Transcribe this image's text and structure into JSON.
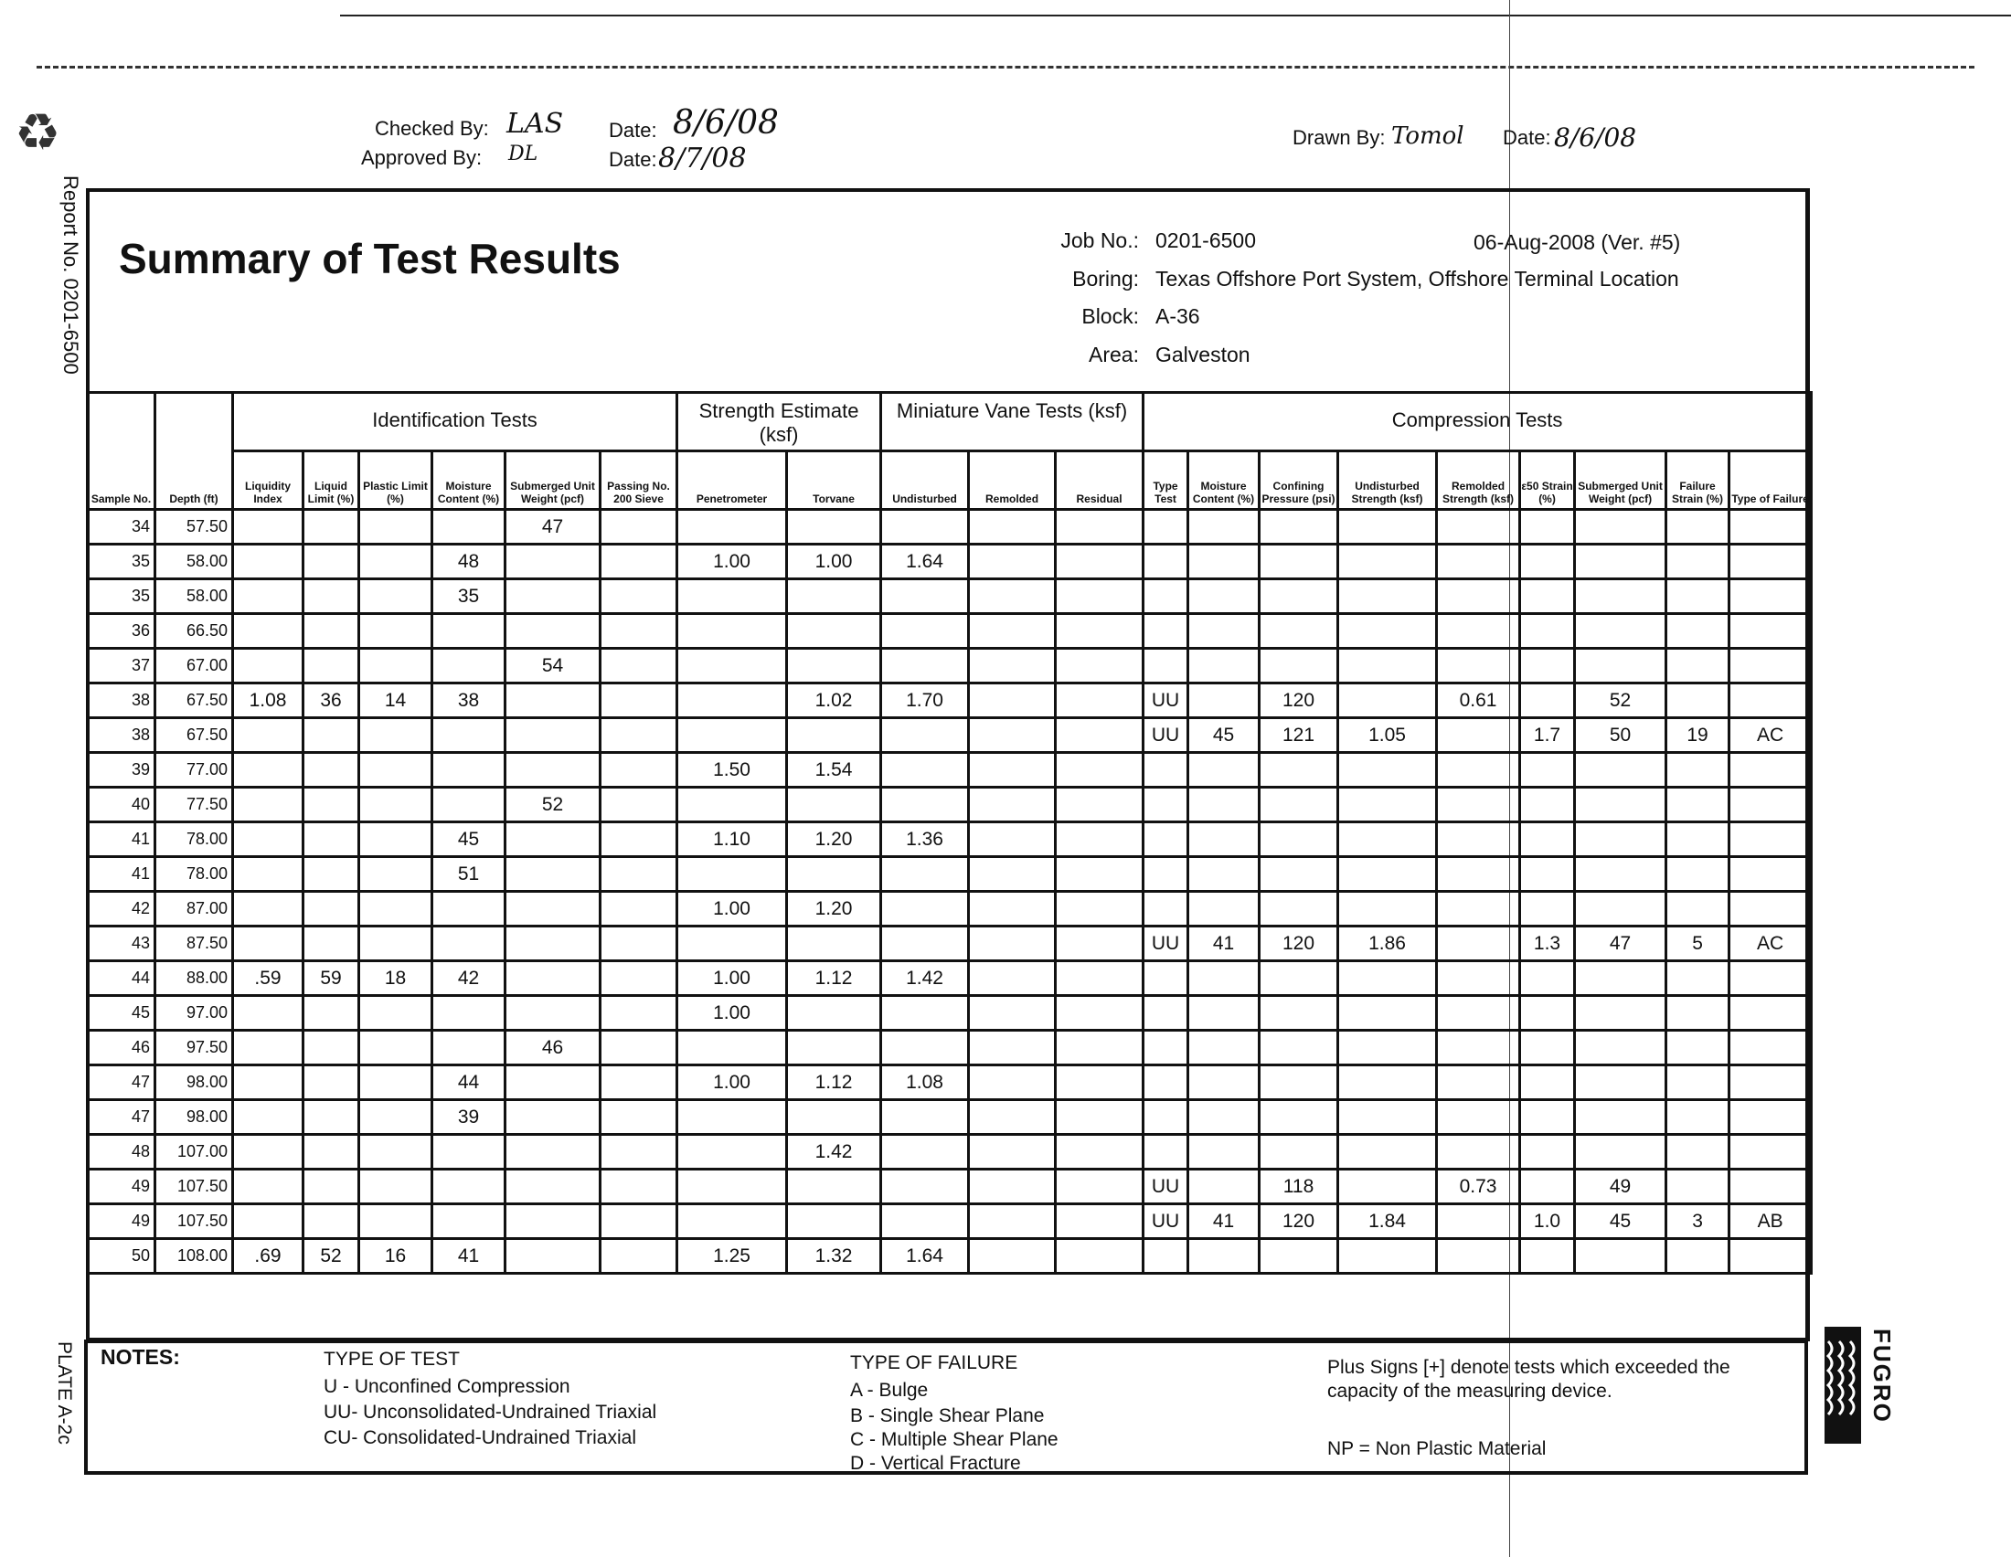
{
  "header": {
    "checked_by_label": "Checked By:",
    "checked_by_sig": "LAS",
    "checked_date_label": "Date:",
    "checked_date": "8/6/08",
    "approved_by_label": "Approved By:",
    "approved_by_sig": "DL",
    "approved_date_label": "Date:",
    "approved_date": "8/7/08",
    "drawn_by_label": "Drawn By:",
    "drawn_by_sig": "Tomol",
    "drawn_date_label": "Date:",
    "drawn_date": "8/6/08"
  },
  "side": {
    "report_no": "Report No. 0201-6500",
    "plate": "PLATE A-2c"
  },
  "title": "Summary of Test Results",
  "info": {
    "job_label": "Job No.:",
    "job": "0201-6500",
    "date_version": "06-Aug-2008  (Ver. #5)",
    "boring_label": "Boring:",
    "boring": "Texas Offshore Port System, Offshore Terminal Location",
    "block_label": "Block:",
    "block": "A-36",
    "area_label": "Area:",
    "area": "Galveston"
  },
  "table": {
    "groups": [
      "Identification Tests",
      "Strength Estimate (ksf)",
      "Miniature Vane Tests (ksf)",
      "Compression Tests"
    ],
    "columns": [
      "Sample No.",
      "Depth (ft)",
      "Liquidity Index",
      "Liquid Limit (%)",
      "Plastic Limit (%)",
      "Moisture Content (%)",
      "Submerged Unit Weight (pcf)",
      "Passing No. 200 Sieve",
      "Penetrometer",
      "Torvane",
      "Undisturbed",
      "Remolded",
      "Residual",
      "Type Test",
      "Moisture Content (%)",
      "Confining Pressure (psi)",
      "Undisturbed Strength (ksf)",
      "Remolded Strength (ksf)",
      "ε50 Strain (%)",
      "Submerged Unit Weight (pcf)",
      "Failure Strain (%)",
      "Type of Failure"
    ],
    "rows": [
      [
        "34",
        "57.50",
        "",
        "",
        "",
        "",
        "47",
        "",
        "",
        "",
        "",
        "",
        "",
        "",
        "",
        "",
        "",
        "",
        "",
        "",
        "",
        ""
      ],
      [
        "35",
        "58.00",
        "",
        "",
        "",
        "48",
        "",
        "",
        "1.00",
        "1.00",
        "1.64",
        "",
        "",
        "",
        "",
        "",
        "",
        "",
        "",
        "",
        "",
        ""
      ],
      [
        "35",
        "58.00",
        "",
        "",
        "",
        "35",
        "",
        "",
        "",
        "",
        "",
        "",
        "",
        "",
        "",
        "",
        "",
        "",
        "",
        "",
        "",
        ""
      ],
      [
        "36",
        "66.50",
        "",
        "",
        "",
        "",
        "",
        "",
        "",
        "",
        "",
        "",
        "",
        "",
        "",
        "",
        "",
        "",
        "",
        "",
        "",
        ""
      ],
      [
        "37",
        "67.00",
        "",
        "",
        "",
        "",
        "54",
        "",
        "",
        "",
        "",
        "",
        "",
        "",
        "",
        "",
        "",
        "",
        "",
        "",
        "",
        ""
      ],
      [
        "38",
        "67.50",
        "1.08",
        "36",
        "14",
        "38",
        "",
        "",
        "",
        "1.02",
        "1.70",
        "",
        "",
        "UU",
        "",
        "120",
        "",
        "0.61",
        "",
        "52",
        "",
        ""
      ],
      [
        "38",
        "67.50",
        "",
        "",
        "",
        "",
        "",
        "",
        "",
        "",
        "",
        "",
        "",
        "UU",
        "45",
        "121",
        "1.05",
        "",
        "1.7",
        "50",
        "19",
        "AC"
      ],
      [
        "39",
        "77.00",
        "",
        "",
        "",
        "",
        "",
        "",
        "1.50",
        "1.54",
        "",
        "",
        "",
        "",
        "",
        "",
        "",
        "",
        "",
        "",
        "",
        ""
      ],
      [
        "40",
        "77.50",
        "",
        "",
        "",
        "",
        "52",
        "",
        "",
        "",
        "",
        "",
        "",
        "",
        "",
        "",
        "",
        "",
        "",
        "",
        "",
        ""
      ],
      [
        "41",
        "78.00",
        "",
        "",
        "",
        "45",
        "",
        "",
        "1.10",
        "1.20",
        "1.36",
        "",
        "",
        "",
        "",
        "",
        "",
        "",
        "",
        "",
        "",
        ""
      ],
      [
        "41",
        "78.00",
        "",
        "",
        "",
        "51",
        "",
        "",
        "",
        "",
        "",
        "",
        "",
        "",
        "",
        "",
        "",
        "",
        "",
        "",
        "",
        ""
      ],
      [
        "42",
        "87.00",
        "",
        "",
        "",
        "",
        "",
        "",
        "1.00",
        "1.20",
        "",
        "",
        "",
        "",
        "",
        "",
        "",
        "",
        "",
        "",
        "",
        ""
      ],
      [
        "43",
        "87.50",
        "",
        "",
        "",
        "",
        "",
        "",
        "",
        "",
        "",
        "",
        "",
        "UU",
        "41",
        "120",
        "1.86",
        "",
        "1.3",
        "47",
        "5",
        "AC"
      ],
      [
        "44",
        "88.00",
        ".59",
        "59",
        "18",
        "42",
        "",
        "",
        "1.00",
        "1.12",
        "1.42",
        "",
        "",
        "",
        "",
        "",
        "",
        "",
        "",
        "",
        "",
        ""
      ],
      [
        "45",
        "97.00",
        "",
        "",
        "",
        "",
        "",
        "",
        "1.00",
        "",
        "",
        "",
        "",
        "",
        "",
        "",
        "",
        "",
        "",
        "",
        "",
        ""
      ],
      [
        "46",
        "97.50",
        "",
        "",
        "",
        "",
        "46",
        "",
        "",
        "",
        "",
        "",
        "",
        "",
        "",
        "",
        "",
        "",
        "",
        "",
        "",
        ""
      ],
      [
        "47",
        "98.00",
        "",
        "",
        "",
        "44",
        "",
        "",
        "1.00",
        "1.12",
        "1.08",
        "",
        "",
        "",
        "",
        "",
        "",
        "",
        "",
        "",
        "",
        ""
      ],
      [
        "47",
        "98.00",
        "",
        "",
        "",
        "39",
        "",
        "",
        "",
        "",
        "",
        "",
        "",
        "",
        "",
        "",
        "",
        "",
        "",
        "",
        "",
        ""
      ],
      [
        "48",
        "107.00",
        "",
        "",
        "",
        "",
        "",
        "",
        "",
        "1.42",
        "",
        "",
        "",
        "",
        "",
        "",
        "",
        "",
        "",
        "",
        "",
        ""
      ],
      [
        "49",
        "107.50",
        "",
        "",
        "",
        "",
        "",
        "",
        "",
        "",
        "",
        "",
        "",
        "UU",
        "",
        "118",
        "",
        "0.73",
        "",
        "49",
        "",
        ""
      ],
      [
        "49",
        "107.50",
        "",
        "",
        "",
        "",
        "",
        "",
        "",
        "",
        "",
        "",
        "",
        "UU",
        "41",
        "120",
        "1.84",
        "",
        "1.0",
        "45",
        "3",
        "AB"
      ],
      [
        "50",
        "108.00",
        ".69",
        "52",
        "16",
        "41",
        "",
        "",
        "1.25",
        "1.32",
        "1.64",
        "",
        "",
        "",
        "",
        "",
        "",
        "",
        "",
        "",
        "",
        ""
      ]
    ]
  },
  "notes": {
    "label": "NOTES:",
    "test_title": "TYPE OF TEST",
    "tests": [
      "U  - Unconfined Compression",
      "UU- Unconsolidated-Undrained Triaxial",
      "CU- Consolidated-Undrained Triaxial"
    ],
    "failure_title": "TYPE OF FAILURE",
    "failures": [
      "A - Bulge",
      "B - Single Shear Plane",
      "C - Multiple Shear Plane",
      "D - Vertical Fracture"
    ],
    "plus": "Plus Signs [+] denote tests which exceeded the capacity of the measuring device.",
    "np": "NP = Non Plastic Material"
  },
  "logo": {
    "text": "FUGRO"
  },
  "icons": {
    "recycle": "recycle-icon"
  }
}
